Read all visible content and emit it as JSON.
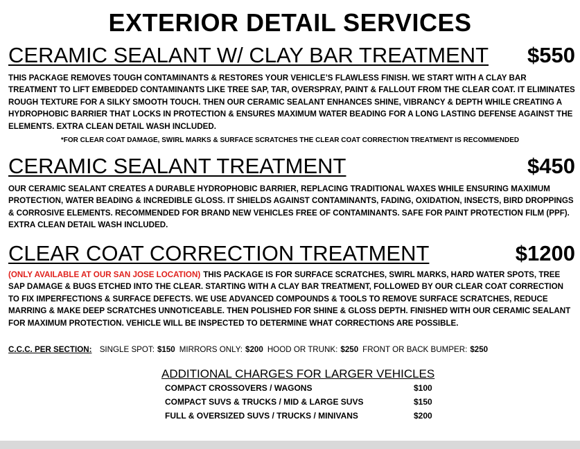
{
  "header": {
    "title": "EXTERIOR DETAIL SERVICES"
  },
  "services": [
    {
      "name": "CERAMIC SEALANT W/ CLAY BAR TREATMENT",
      "price": "$550",
      "description": "THIS PACKAGE REMOVES TOUGH CONTAMINANTS & RESTORES YOUR VEHICLE’S FLAWLESS FINISH. WE START WITH A CLAY BAR TREATMENT TO LIFT EMBEDDED CONTAMINANTS LIKE TREE SAP, TAR, OVERSPRAY, PAINT & FALLOUT FROM THE CLEAR COAT. IT ELIMINATES ROUGH TEXTURE FOR A SILKY SMOOTH TOUCH. THEN OUR CERAMIC SEALANT ENHANCES SHINE, VIBRANCY & DEPTH WHILE CREATING A HYDROPHOBIC BARRIER THAT LOCKS IN PROTECTION & ENSURES MAXIMUM WATER BEADING FOR A LONG LASTING DEFENSE AGAINST THE ELEMENTS. EXTRA CLEAN DETAIL WASH INCLUDED.",
      "note": "*FOR CLEAR COAT DAMAGE, SWIRL MARKS & SURFACE SCRATCHES THE CLEAR COAT CORRECTION TREATMENT IS RECOMMENDED"
    },
    {
      "name": "CERAMIC SEALANT TREATMENT",
      "price": "$450",
      "description": "OUR CERAMIC SEALANT CREATES A DURABLE HYDROPHOBIC BARRIER, REPLACING TRADITIONAL WAXES WHILE ENSURING MAXIMUM PROTECTION, WATER BEADING & INCREDIBLE GLOSS. IT SHIELDS AGAINST CONTAMINANTS, FADING, OXIDATION, INSECTS, BIRD DROPPINGS & CORROSIVE ELEMENTS. RECOMMENDED FOR BRAND NEW VEHICLES FREE OF CONTAMINANTS.  SAFE FOR PAINT PROTECTION FILM (PPF). EXTRA CLEAN DETAIL WASH INCLUDED."
    },
    {
      "name": "CLEAR COAT CORRECTION TREATMENT",
      "price": "$1200",
      "availability": "(ONLY AVAILABLE AT OUR SAN JOSE LOCATION)",
      "description": "THIS PACKAGE IS FOR SURFACE SCRATCHES, SWIRL MARKS, HARD WATER SPOTS, TREE SAP DAMAGE & BUGS ETCHED INTO THE CLEAR. STARTING WITH A CLAY BAR TREATMENT, FOLLOWED BY OUR CLEAR COAT CORRECTION TO FIX IMPERFECTIONS & SURFACE DEFECTS. WE USE ADVANCED COMPOUNDS & TOOLS TO REMOVE SURFACE SCRATCHES, REDUCE MARRING & MAKE DEEP SCRATCHES UNNOTICEABLE. THEN POLISHED FOR SHINE & GLOSS DEPTH. FINISHED WITH OUR CERAMIC SEALANT FOR MAXIMUM PROTECTION. VEHICLE WILL BE INSPECTED TO DETERMINE WHAT CORRECTIONS ARE POSSIBLE.",
      "per_section": {
        "label": "C.C.C. PER SECTION:",
        "items": [
          {
            "name": "SINGLE SPOT:",
            "price": "$150"
          },
          {
            "name": "MIRRORS ONLY:",
            "price": "$200"
          },
          {
            "name": "HOOD OR TRUNK:",
            "price": "$250"
          },
          {
            "name": "FRONT OR BACK BUMPER:",
            "price": "$250"
          }
        ]
      }
    }
  ],
  "additional_charges": {
    "title": "ADDITIONAL CHARGES FOR LARGER VEHICLES",
    "rows": [
      [
        "COMPACT CROSSOVERS / WAGONS",
        "$100"
      ],
      [
        "COMPACT SUVS & TRUCKS / MID & LARGE SUVS",
        "$150"
      ],
      [
        "FULL & OVERSIZED SUVS / TRUCKS / MINIVANS",
        "$200"
      ]
    ]
  }
}
